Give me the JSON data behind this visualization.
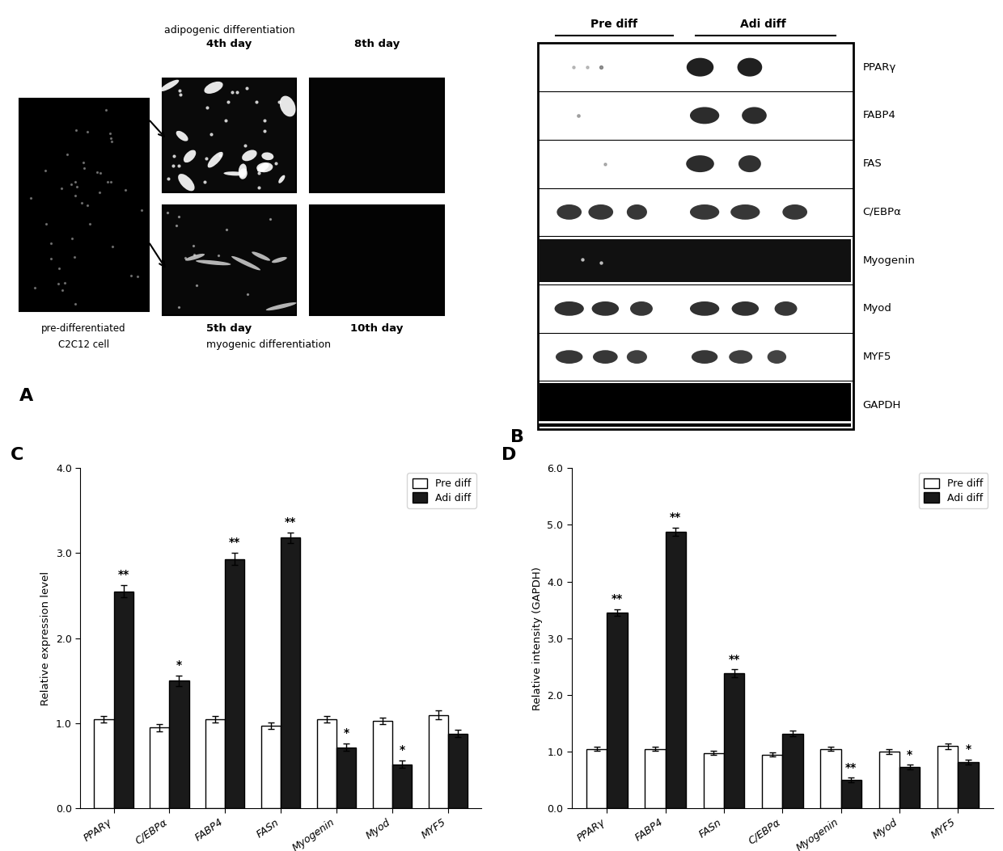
{
  "panel_C": {
    "categories": [
      "PPARγ",
      "C/EBPα",
      "FABP4",
      "FASn",
      "Myogenin",
      "Myod",
      "MYF5"
    ],
    "pre_diff": [
      1.05,
      0.95,
      1.05,
      0.97,
      1.05,
      1.03,
      1.1
    ],
    "adi_diff": [
      2.55,
      1.5,
      2.93,
      3.18,
      0.72,
      0.52,
      0.88
    ],
    "pre_err": [
      0.04,
      0.04,
      0.04,
      0.04,
      0.04,
      0.04,
      0.05
    ],
    "adi_err": [
      0.07,
      0.06,
      0.07,
      0.06,
      0.04,
      0.04,
      0.04
    ],
    "significance": [
      "**",
      "*",
      "**",
      "**",
      "*",
      "*",
      ""
    ],
    "ylabel": "Relative expression level",
    "ylim": [
      0.0,
      4.0
    ],
    "yticks": [
      0.0,
      1.0,
      2.0,
      3.0,
      4.0
    ],
    "label": "C"
  },
  "panel_D": {
    "categories": [
      "PPARγ",
      "FABP4",
      "FASn",
      "C/EBPα",
      "Myogenin",
      "Myod",
      "MYF5"
    ],
    "pre_diff": [
      1.05,
      1.05,
      0.98,
      0.95,
      1.05,
      1.0,
      1.1
    ],
    "adi_diff": [
      3.45,
      4.88,
      2.38,
      1.32,
      0.5,
      0.73,
      0.82
    ],
    "pre_err": [
      0.04,
      0.04,
      0.04,
      0.04,
      0.04,
      0.04,
      0.05
    ],
    "adi_err": [
      0.06,
      0.07,
      0.07,
      0.05,
      0.04,
      0.04,
      0.04
    ],
    "significance": [
      "**",
      "**",
      "**",
      "",
      "**",
      "*",
      "*"
    ],
    "ylabel": "Relative intensity (GAPDH)",
    "ylim": [
      0.0,
      6.0
    ],
    "yticks": [
      0.0,
      1.0,
      2.0,
      3.0,
      4.0,
      5.0,
      6.0
    ],
    "label": "D"
  },
  "colors": {
    "pre_diff": "#ffffff",
    "adi_diff": "#1a1a1a",
    "bar_edge": "#000000"
  },
  "legend": {
    "pre_diff_label": "Pre diff",
    "adi_diff_label": "Adi diff"
  },
  "panel_A_label": "A",
  "panel_B_label": "B",
  "panel_B_labels": [
    "PPARγ",
    "FABP4",
    "FAS",
    "C/EBPα",
    "Myogenin",
    "Myod",
    "MYF5",
    "GAPDH"
  ],
  "panel_B_header": [
    "Pre diff",
    "Adi diff"
  ]
}
